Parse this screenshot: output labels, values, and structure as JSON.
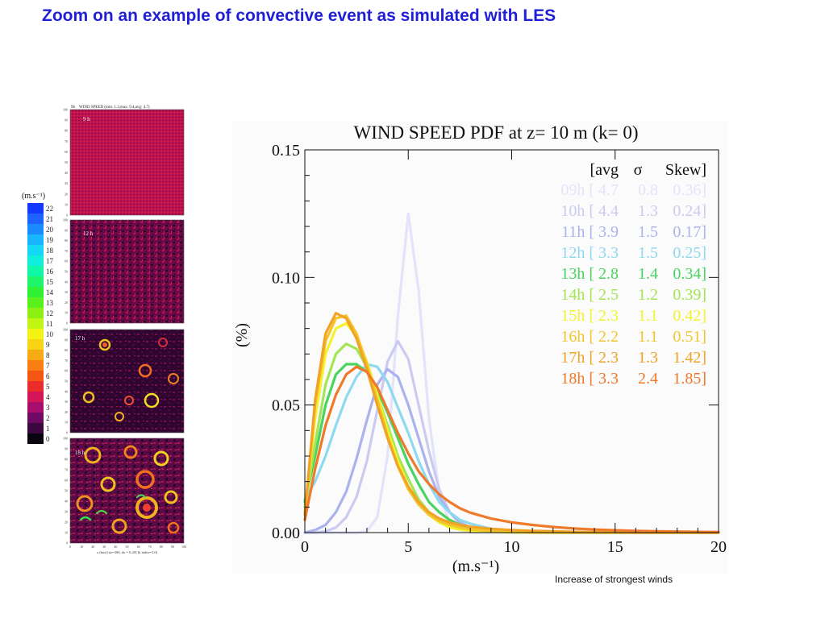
{
  "slide": {
    "title": "Zoom on an example of convective event as simulated with LES",
    "caption": "Increase of strongest winds"
  },
  "snapshots": {
    "header": "WIND SPEED (min: 1.3,max: 9.4,avg: 4.7)",
    "header_hour": "9h",
    "x_label": "x (km) [nx=300, dx = 0.20] [k index=1.0]",
    "y_ticks": [
      "0",
      "10",
      "20",
      "30",
      "40",
      "50",
      "60",
      "70",
      "80",
      "90",
      "100"
    ],
    "x_ticks": [
      "0",
      "10",
      "20",
      "30",
      "40",
      "50",
      "60",
      "70",
      "80",
      "90",
      "100"
    ],
    "panels": [
      {
        "label": "9 h"
      },
      {
        "label": "12 h"
      },
      {
        "label": "17 h"
      },
      {
        "label": "18 h"
      }
    ]
  },
  "colorbar": {
    "unit": "(m.s⁻¹)",
    "ticks": [
      "22",
      "21",
      "20",
      "19",
      "18",
      "17",
      "16",
      "15",
      "14",
      "13",
      "12",
      "11",
      "10",
      "9",
      "8",
      "7",
      "6",
      "5",
      "4",
      "3",
      "2",
      "1",
      "0"
    ],
    "colors": [
      "#1338ff",
      "#1e62ff",
      "#1a8cff",
      "#19b5ff",
      "#15d8f5",
      "#12eedc",
      "#10f7a8",
      "#1ef56a",
      "#30f036",
      "#5af01e",
      "#8cf014",
      "#c2f414",
      "#f2f414",
      "#f8d414",
      "#f8aa14",
      "#f87e14",
      "#f45614",
      "#ea2c2a",
      "#d3155a",
      "#a80e6e",
      "#6f0a62",
      "#3a083e",
      "#0a0410"
    ]
  },
  "chart_data": {
    "type": "line",
    "title": "WIND SPEED PDF at z=  10 m (k= 0)",
    "xlabel": "(m.s⁻¹)",
    "ylabel": "(%)",
    "xlim": [
      0,
      20
    ],
    "ylim": [
      0,
      0.15
    ],
    "x_ticks": [
      "0",
      "5",
      "10",
      "15",
      "20"
    ],
    "y_ticks": [
      "0.00",
      "0.05",
      "0.10",
      "0.15"
    ],
    "legend_header": [
      "[avg",
      "σ",
      "Skew]"
    ],
    "legend_position": "top-right",
    "x": [
      0,
      0.5,
      1,
      1.5,
      2,
      2.5,
      3,
      3.5,
      4,
      4.5,
      5,
      5.5,
      6,
      6.5,
      7,
      7.5,
      8,
      9,
      10,
      11,
      12,
      13,
      14,
      15,
      16,
      17,
      18,
      19,
      20
    ],
    "series": [
      {
        "name": "09h",
        "avg": "[ 4.7",
        "sigma": "0.8",
        "skew": "0.36]",
        "color": "#e3e3fb",
        "values": [
          0,
          0,
          0,
          0,
          0,
          0,
          0.0005,
          0.006,
          0.03,
          0.085,
          0.125,
          0.095,
          0.045,
          0.015,
          0.004,
          0.001,
          0,
          0,
          0,
          0,
          0,
          0,
          0,
          0,
          0,
          0,
          0,
          0,
          0
        ]
      },
      {
        "name": "10h",
        "avg": "[ 4.4",
        "sigma": "1.3",
        "skew": "0.24]",
        "color": "#cbcbf1",
        "values": [
          0,
          0,
          0.0005,
          0.002,
          0.006,
          0.014,
          0.028,
          0.048,
          0.067,
          0.075,
          0.068,
          0.05,
          0.032,
          0.017,
          0.008,
          0.0035,
          0.0015,
          0.0003,
          0,
          0,
          0,
          0,
          0,
          0,
          0,
          0,
          0,
          0,
          0
        ]
      },
      {
        "name": "11h",
        "avg": "[ 3.9",
        "sigma": "1.5",
        "skew": "0.17]",
        "color": "#abb2ec",
        "values": [
          0,
          0.001,
          0.003,
          0.008,
          0.016,
          0.029,
          0.044,
          0.058,
          0.064,
          0.061,
          0.05,
          0.037,
          0.024,
          0.014,
          0.008,
          0.004,
          0.002,
          0.0005,
          0.0001,
          0,
          0,
          0,
          0,
          0,
          0,
          0,
          0,
          0,
          0
        ]
      },
      {
        "name": "12h",
        "avg": "[ 3.3",
        "sigma": "1.5",
        "skew": "0.25]",
        "color": "#8ed9ef",
        "values": [
          0.013,
          0.02,
          0.03,
          0.042,
          0.053,
          0.061,
          0.066,
          0.065,
          0.059,
          0.049,
          0.039,
          0.028,
          0.019,
          0.012,
          0.008,
          0.005,
          0.0035,
          0.0015,
          0.0007,
          0.0003,
          0.0001,
          0,
          0,
          0,
          0,
          0,
          0,
          0,
          0
        ]
      },
      {
        "name": "13h",
        "avg": "[ 2.8",
        "sigma": "1.4",
        "skew": "0.34]",
        "color": "#48d45e",
        "values": [
          0.012,
          0.03,
          0.05,
          0.062,
          0.066,
          0.066,
          0.063,
          0.056,
          0.047,
          0.037,
          0.027,
          0.019,
          0.012,
          0.008,
          0.005,
          0.003,
          0.002,
          0.001,
          0.0005,
          0.0002,
          0,
          0,
          0,
          0,
          0,
          0,
          0,
          0,
          0
        ]
      },
      {
        "name": "14h",
        "avg": "[ 2.5",
        "sigma": "1.2",
        "skew": "0.39]",
        "color": "#a3e552",
        "values": [
          0.01,
          0.035,
          0.058,
          0.07,
          0.074,
          0.072,
          0.065,
          0.054,
          0.042,
          0.03,
          0.021,
          0.013,
          0.008,
          0.005,
          0.003,
          0.002,
          0.0012,
          0.0005,
          0.0002,
          0,
          0,
          0,
          0,
          0,
          0,
          0,
          0,
          0,
          0
        ]
      },
      {
        "name": "15h",
        "avg": "[ 2.3",
        "sigma": "1.1",
        "skew": "0.42]",
        "color": "#f2f22e",
        "values": [
          0.008,
          0.045,
          0.07,
          0.08,
          0.082,
          0.077,
          0.067,
          0.054,
          0.04,
          0.028,
          0.018,
          0.011,
          0.007,
          0.004,
          0.002,
          0.0012,
          0.0007,
          0.0003,
          0.0001,
          0,
          0,
          0,
          0,
          0,
          0,
          0,
          0,
          0,
          0
        ]
      },
      {
        "name": "16h",
        "avg": "[ 2.2",
        "sigma": "1.1",
        "skew": "0.51]",
        "color": "#f2c52a",
        "values": [
          0.007,
          0.05,
          0.075,
          0.084,
          0.085,
          0.078,
          0.066,
          0.052,
          0.038,
          0.026,
          0.017,
          0.011,
          0.007,
          0.0045,
          0.003,
          0.002,
          0.0013,
          0.0006,
          0.0003,
          0.0001,
          0,
          0,
          0,
          0,
          0,
          0,
          0,
          0,
          0
        ]
      },
      {
        "name": "17h",
        "avg": "[ 2.3",
        "sigma": "1.3",
        "skew": "1.42]",
        "color": "#f2a225",
        "values": [
          0.007,
          0.052,
          0.078,
          0.086,
          0.084,
          0.076,
          0.064,
          0.05,
          0.037,
          0.026,
          0.018,
          0.012,
          0.008,
          0.0055,
          0.004,
          0.003,
          0.0023,
          0.0015,
          0.001,
          0.0007,
          0.0005,
          0.0003,
          0.0002,
          0.0001,
          0,
          0,
          0,
          0,
          0
        ]
      },
      {
        "name": "18h",
        "avg": "[ 3.3",
        "sigma": "2.4",
        "skew": "1.85]",
        "color": "#ee7a2a",
        "values": [
          0.005,
          0.025,
          0.042,
          0.054,
          0.062,
          0.065,
          0.063,
          0.057,
          0.048,
          0.039,
          0.031,
          0.024,
          0.019,
          0.015,
          0.012,
          0.0095,
          0.0078,
          0.0055,
          0.004,
          0.003,
          0.0022,
          0.0016,
          0.0012,
          0.0009,
          0.0007,
          0.0005,
          0.0004,
          0.0003,
          0.0002
        ]
      }
    ]
  }
}
